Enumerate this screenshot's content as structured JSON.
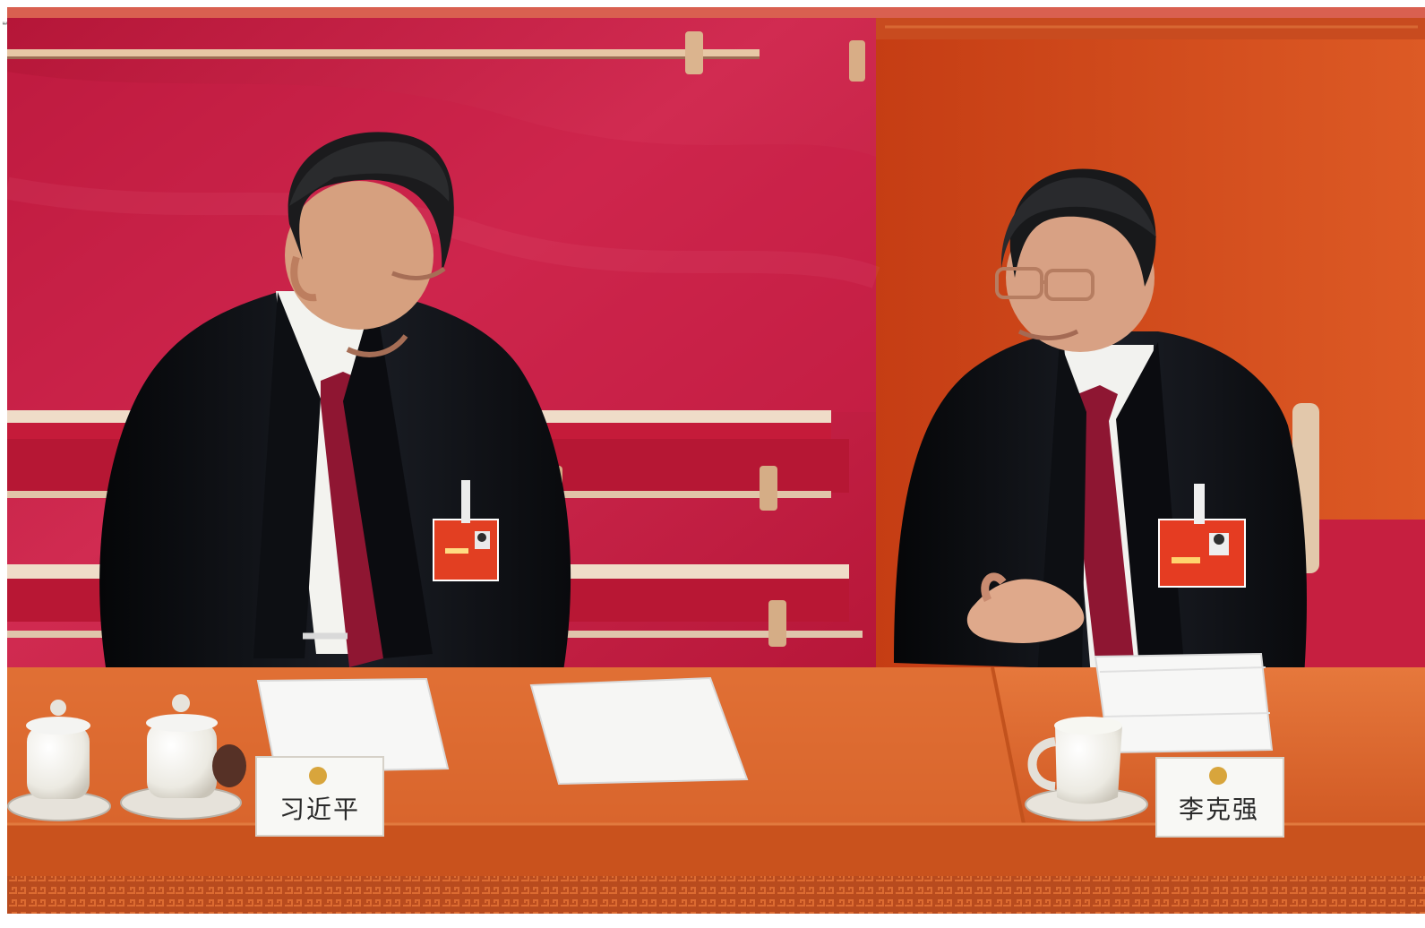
{
  "photo": {
    "side_note": "Ǝ",
    "left_nameplate": "习近平",
    "right_nameplate": "李克强"
  },
  "colors": {
    "top_strip": "#d96050",
    "red_wall": "#c51f46",
    "orange_wall": "#cc4a1f",
    "desk": "#d85f25",
    "desk_dark": "#b44b19",
    "suit": "#101216",
    "shirt": "#f2f2ef",
    "tie": "#8e1632",
    "skin": "#d59b7a"
  }
}
